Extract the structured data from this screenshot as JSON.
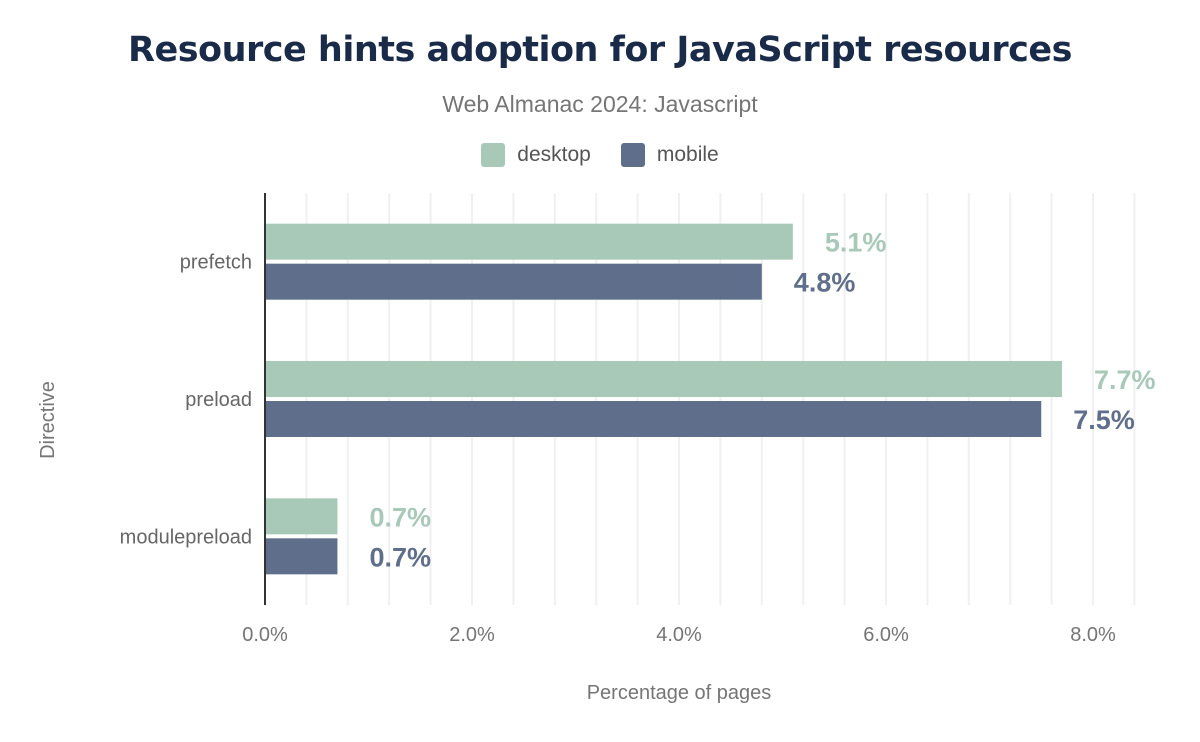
{
  "chart_data": {
    "type": "bar",
    "orientation": "horizontal",
    "title": "Resource hints adoption for JavaScript resources",
    "subtitle": "Web Almanac 2024: Javascript",
    "xlabel": "Percentage of pages",
    "ylabel": "Directive",
    "categories": [
      "prefetch",
      "preload",
      "modulepreload"
    ],
    "series": [
      {
        "name": "desktop",
        "color": "#a8c9b8",
        "values": [
          5.1,
          7.7,
          0.7
        ],
        "labels": [
          "5.1%",
          "7.7%",
          "0.7%"
        ]
      },
      {
        "name": "mobile",
        "color": "#5f6e8a",
        "values": [
          4.8,
          7.5,
          0.7
        ],
        "labels": [
          "4.8%",
          "7.5%",
          "0.7%"
        ]
      }
    ],
    "xlim": [
      0,
      8.5
    ],
    "xticks": [
      0,
      2,
      4,
      6,
      8
    ],
    "xtick_labels": [
      "0.0%",
      "2.0%",
      "4.0%",
      "6.0%",
      "8.0%"
    ],
    "grid": true,
    "legend_position": "top"
  }
}
